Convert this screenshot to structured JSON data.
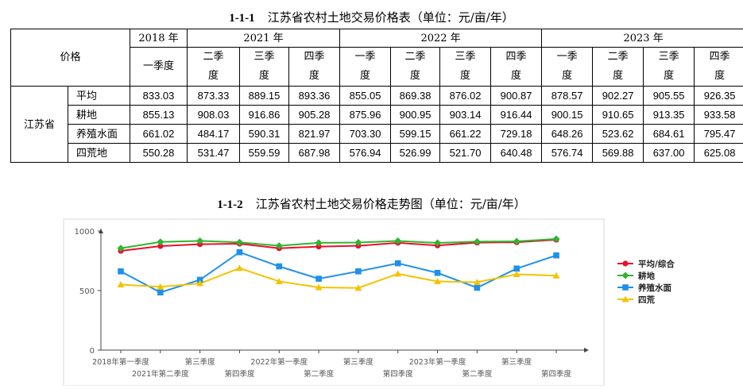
{
  "table": {
    "caption_num": "1-1-1",
    "caption_text": "江苏省农村土地交易价格表（单位：元/亩/年）",
    "header_label": "价格",
    "years": [
      "2018 年",
      "2021 年",
      "2022 年",
      "2023 年"
    ],
    "quarters": [
      [
        "一季度"
      ],
      [
        "二季",
        "度"
      ],
      [
        "三季",
        "度"
      ],
      [
        "四季",
        "度"
      ],
      [
        "一季",
        "度"
      ],
      [
        "二季",
        "度"
      ],
      [
        "三季",
        "度"
      ],
      [
        "四季",
        "度"
      ],
      [
        "一季",
        "度"
      ],
      [
        "二季",
        "度"
      ],
      [
        "三季",
        "度"
      ],
      [
        "四季",
        "度"
      ]
    ],
    "region": "江苏省",
    "rows": [
      {
        "label": "平均",
        "values": [
          "833.03",
          "873.33",
          "889.15",
          "893.36",
          "855.05",
          "869.38",
          "876.02",
          "900.87",
          "878.57",
          "902.27",
          "905.55",
          "926.35"
        ]
      },
      {
        "label": "耕地",
        "values": [
          "855.13",
          "908.03",
          "916.86",
          "905.28",
          "875.96",
          "900.95",
          "903.14",
          "916.44",
          "900.15",
          "910.65",
          "913.35",
          "933.58"
        ]
      },
      {
        "label": "养殖水面",
        "values": [
          "661.02",
          "484.17",
          "590.31",
          "821.97",
          "703.30",
          "599.15",
          "661.22",
          "729.18",
          "648.26",
          "523.62",
          "684.61",
          "795.47"
        ]
      },
      {
        "label": "四荒地",
        "values": [
          "550.28",
          "531.47",
          "559.59",
          "687.98",
          "576.94",
          "526.99",
          "521.70",
          "640.48",
          "576.74",
          "569.88",
          "637.00",
          "625.08"
        ]
      }
    ]
  },
  "chart_caption_num": "1-1-2",
  "chart_caption_text": "江苏省农村土地交易价格走势图（单位：元/亩/年）",
  "chart_data": {
    "type": "line",
    "categories": [
      "2018年第一季度",
      "2021年第二季度",
      "第三季度",
      "第四季度",
      "2022年第一季度",
      "第二季度",
      "第三季度",
      "第四季度",
      "2023年第一季度",
      "第二季度",
      "第三季度",
      "第四季度"
    ],
    "ylim": [
      0,
      1000
    ],
    "yticks": [
      "0",
      "500",
      "1000"
    ],
    "grid": false,
    "legend_position": "right",
    "series": [
      {
        "name": "平均/综合",
        "color": "#e8102c",
        "marker": "circle",
        "values": [
          833.03,
          873.33,
          889.15,
          893.36,
          855.05,
          869.38,
          876.02,
          900.87,
          878.57,
          902.27,
          905.55,
          926.35
        ]
      },
      {
        "name": "耕地",
        "color": "#2fb52f",
        "marker": "diamond",
        "values": [
          855.13,
          908.03,
          916.86,
          905.28,
          875.96,
          900.95,
          903.14,
          916.44,
          900.15,
          910.65,
          913.35,
          933.58
        ]
      },
      {
        "name": "养殖水面",
        "color": "#1e90ee",
        "marker": "square",
        "values": [
          661.02,
          484.17,
          590.31,
          821.97,
          703.3,
          599.15,
          661.22,
          729.18,
          648.26,
          523.62,
          684.61,
          795.47
        ]
      },
      {
        "name": "四荒",
        "color": "#f2c400",
        "marker": "triangle",
        "values": [
          550.28,
          531.47,
          559.59,
          687.98,
          576.94,
          526.99,
          521.7,
          640.48,
          576.74,
          569.88,
          637.0,
          625.08
        ]
      }
    ]
  }
}
